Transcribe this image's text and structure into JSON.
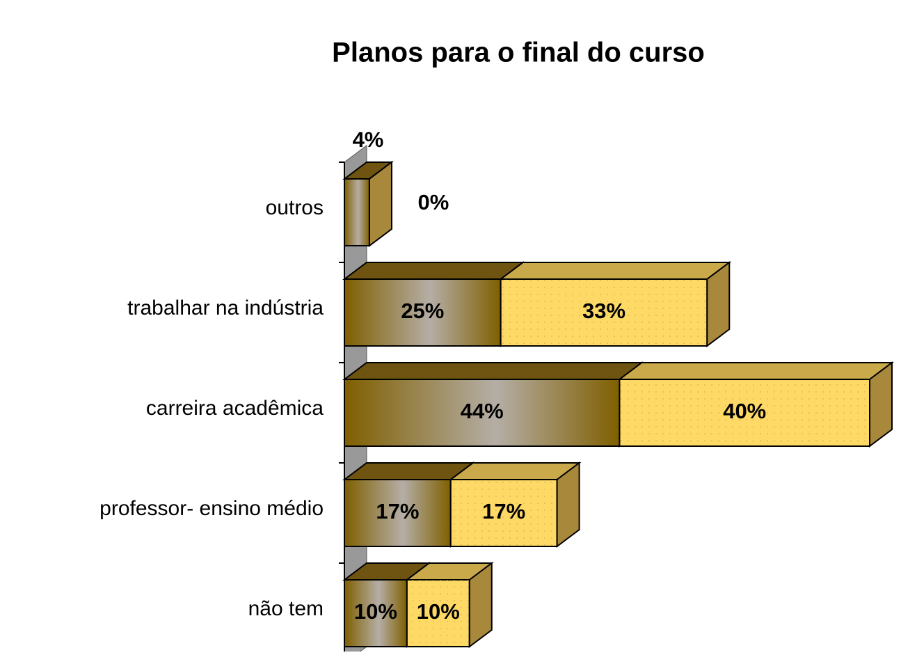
{
  "chart_data": {
    "type": "bar3d_stacked_horizontal",
    "title": "Planos para o final do curso",
    "categories": [
      "outros",
      "trabalhar na indústria",
      "carreira acadêmica",
      "professor- ensino médio",
      "não tem"
    ],
    "series": [
      {
        "color": "#7f5f00",
        "values": [
          4,
          25,
          44,
          17,
          10
        ],
        "value_labels": [
          "4%",
          "25%",
          "44%",
          "17%",
          "10%"
        ]
      },
      {
        "color": "#ffd966",
        "values": [
          0,
          33,
          40,
          17,
          10
        ],
        "value_labels": [
          "0%",
          "33%",
          "40%",
          "17%",
          "10%"
        ]
      }
    ]
  }
}
